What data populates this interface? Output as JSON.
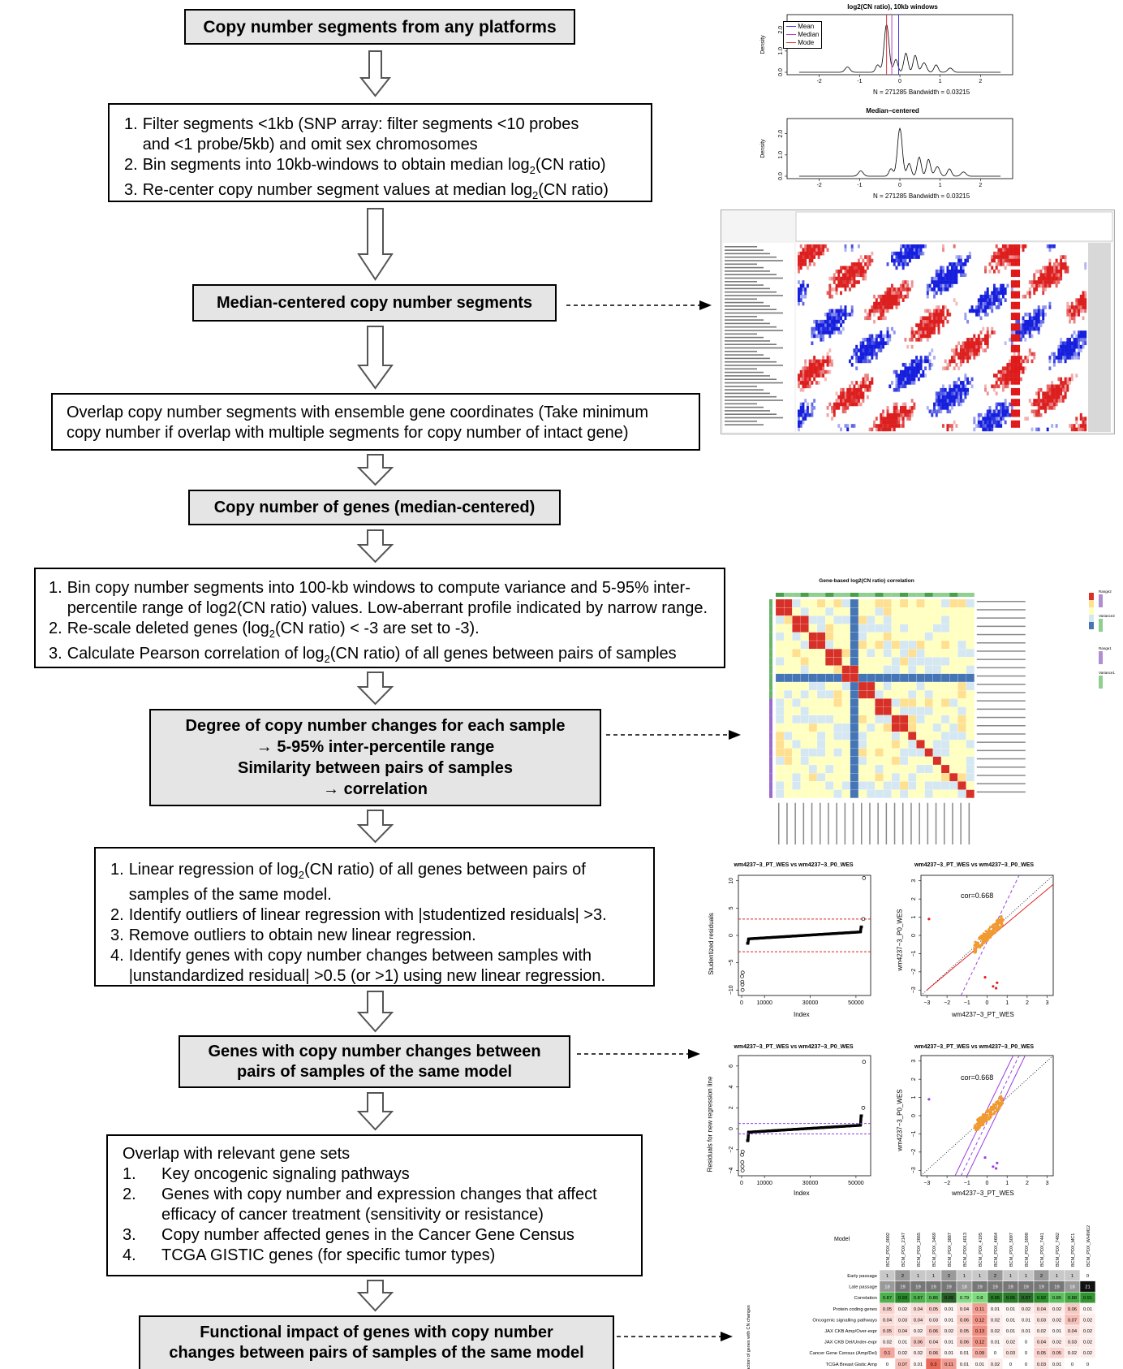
{
  "flow": {
    "box1": "Copy number segments from any platforms",
    "box2": {
      "items": [
        {
          "n": "1.",
          "parts": [
            "Filter segments <1kb (SNP array: filter segments <10 probes",
            "and <1 probe/5kb) and omit sex chromosomes"
          ]
        },
        {
          "n": "2.",
          "pre": "Bin segments into 10kb-windows to obtain median log",
          "sub": "2",
          "post": "(CN ratio)"
        },
        {
          "n": "3.",
          "pre": "Re-center copy number segment values at median log",
          "sub": "2",
          "post": "(CN ratio)"
        }
      ]
    },
    "box3": "Median-centered copy number segments",
    "box4": [
      "Overlap copy number segments with ensemble gene coordinates (Take minimum",
      "copy number if overlap with multiple segments for copy number of intact gene)"
    ],
    "box5": "Copy number of genes (median-centered)",
    "box6": {
      "items": [
        {
          "n": "1.",
          "parts": [
            "Bin copy number segments into 100-kb windows to compute variance and 5-95% inter-",
            "percentile range of log2(CN ratio) values. Low-aberrant profile indicated by narrow range."
          ]
        },
        {
          "n": "2.",
          "pre": "Re-scale deleted genes (log",
          "sub": "2",
          "post": "(CN ratio) < -3 are set to -3)."
        },
        {
          "n": "3.",
          "pre": "Calculate Pearson correlation of log",
          "sub": "2",
          "post": "(CN ratio) of all genes between pairs of samples"
        }
      ]
    },
    "box7": [
      "Degree of copy number changes for each sample",
      "→ 5-95% inter-percentile range",
      "Similarity between pairs of samples",
      "→ correlation"
    ],
    "box8": {
      "items": [
        {
          "n": "1.",
          "pre": "Linear regression of log",
          "sub": "2",
          "post": "(CN ratio) of all genes between pairs of",
          "line2": "samples of the same model."
        },
        {
          "n": "2.",
          "text": "Identify outliers of linear regression with |studentized residuals| >3."
        },
        {
          "n": "3.",
          "text": "Remove outliers to obtain new linear regression."
        },
        {
          "n": "4.",
          "text": "Identify genes with copy number changes between samples with",
          "line2": "|unstandardized residual| >0.5 (or >1) using new linear regression."
        }
      ]
    },
    "box9": [
      "Genes with copy number changes between",
      "pairs of samples of the same model"
    ],
    "box10": {
      "heading": "Overlap with relevant gene sets",
      "items": [
        {
          "n": "1.",
          "lines": [
            "Key oncogenic signaling pathways"
          ]
        },
        {
          "n": "2.",
          "lines": [
            "Genes with copy number and expression changes that affect",
            "efficacy of cancer treatment (sensitivity or resistance)"
          ]
        },
        {
          "n": "3.",
          "lines": [
            "Copy number affected genes in the Cancer Gene Census"
          ]
        },
        {
          "n": "4.",
          "lines": [
            "TCGA GISTIC genes (for specific tumor types)"
          ]
        }
      ]
    },
    "box11": [
      "Functional impact of genes with copy number",
      "changes between pairs of samples of the same model"
    ]
  },
  "figures": {
    "density1": {
      "title": "log2(CN ratio), 10kb windows",
      "ylabel": "Density",
      "footer": "N = 271285   Bandwidth = 0.03215",
      "yticks": [
        "0.0",
        "1.0",
        "2.0"
      ],
      "xticks": [
        "-2",
        "-1",
        "0",
        "1",
        "2"
      ],
      "legend": [
        "Mean",
        "Median",
        "Mode"
      ],
      "legend_colors": [
        "#3a3ad8",
        "#c03bc0",
        "#d83a3a"
      ]
    },
    "density2": {
      "title": "Median−centered",
      "ylabel": "Density",
      "footer": "N = 271285   Bandwidth = 0.03215",
      "yticks": [
        "0.0",
        "1.0",
        "2.0"
      ],
      "xticks": [
        "-2",
        "-1",
        "0",
        "1",
        "2"
      ]
    },
    "heatmap_title": "Gene-based log2(CN ratio) correlation",
    "corr_legend": [
      "Range2",
      "Variance2",
      "Range1",
      "Variance1"
    ],
    "resid1": {
      "title": "wm4237−3_PT_WES vs wm4237−3_P0_WES",
      "ylabel": "Studentized residuals",
      "xlabel": "Index",
      "yticks": [
        "−10",
        "−5",
        "0",
        "5",
        "10"
      ],
      "xticks": [
        "0",
        "10000",
        "30000",
        "50000"
      ]
    },
    "scatter1": {
      "title": "wm4237−3_PT_WES vs wm4237−3_P0_WES",
      "ylabel": "wm4237−3_P0_WES",
      "xlabel": "wm4237−3_PT_WES",
      "cor": "cor=0.668",
      "yticks": [
        "−3",
        "−2",
        "−1",
        "0",
        "1",
        "2",
        "3"
      ],
      "xticks": [
        "−3",
        "−2",
        "−1",
        "0",
        "1",
        "2",
        "3"
      ]
    },
    "resid2": {
      "title": "wm4237−3_PT_WES vs wm4237−3_P0_WES",
      "ylabel": "Residuals for new regression line",
      "xlabel": "Index",
      "yticks": [
        "−4",
        "−2",
        "0",
        "2",
        "4",
        "6"
      ],
      "xticks": [
        "0",
        "10000",
        "30000",
        "50000"
      ]
    },
    "scatter2": {
      "title": "wm4237−3_PT_WES vs wm4237−3_P0_WES",
      "ylabel": "wm4237−3_P0_WES",
      "xlabel": "wm4237−3_PT_WES",
      "cor": "cor=0.668",
      "yticks": [
        "−3",
        "−2",
        "−1",
        "0",
        "1",
        "2",
        "3"
      ],
      "xticks": [
        "−3",
        "−2",
        "−1",
        "0",
        "1",
        "2",
        "3"
      ]
    },
    "table": {
      "model_label": "Model",
      "side_label": "Fraction of genes with CN changes",
      "models": [
        "BCM_PDX_0002",
        "BCM_PDX_2147",
        "BCM_PDX_2665",
        "BCM_PDX_3469",
        "BCM_PDX_3887",
        "BCM_PDX_4013",
        "BCM_PDX_4195",
        "BCM_PDX_4664",
        "BCM_PDX_5097",
        "BCM_PDX_5998",
        "BCM_PDX_7441",
        "BCM_PDX_7482",
        "BCM_PDX_MC1",
        "BCM_PDX_WHIM12"
      ],
      "rows": [
        {
          "label": "Early passage",
          "values": [
            "1",
            "2",
            "1",
            "1",
            "2",
            "1",
            "1",
            "2",
            "1",
            "1",
            "2",
            "1",
            "1",
            "0"
          ]
        },
        {
          "label": "Late passage",
          "values": [
            "18",
            "19",
            "19",
            "19",
            "19",
            "18",
            "19",
            "19",
            "19",
            "19",
            "19",
            "19",
            "18",
            "21"
          ]
        },
        {
          "label": "Correlation",
          "values": [
            "0.87",
            "0.93",
            "0.87",
            "0.86",
            "0.99",
            "0.79",
            "0.8",
            "0.95",
            "0.95",
            "0.97",
            "0.92",
            "0.85",
            "0.88",
            "0.91"
          ]
        },
        {
          "label": "Protein coding genes",
          "values": [
            "0.05",
            "0.02",
            "0.04",
            "0.05",
            "0.01",
            "0.04",
            "0.11",
            "0.01",
            "0.01",
            "0.02",
            "0.04",
            "0.02",
            "0.06",
            "0.01"
          ]
        },
        {
          "label": "Oncogenic signalling pathways",
          "values": [
            "0.04",
            "0.03",
            "0.04",
            "0.03",
            "0.01",
            "0.06",
            "0.12",
            "0.02",
            "0.01",
            "0.01",
            "0.03",
            "0.02",
            "0.07",
            "0.02"
          ]
        },
        {
          "label": "JAX CKB Amp/Over-expr",
          "values": [
            "0.05",
            "0.04",
            "0.02",
            "0.06",
            "0.02",
            "0.05",
            "0.13",
            "0.02",
            "0.01",
            "0.01",
            "0.02",
            "0.01",
            "0.04",
            "0.02"
          ]
        },
        {
          "label": "JAX CKB Del/Under-expr",
          "values": [
            "0.02",
            "0.01",
            "0.06",
            "0.04",
            "0.01",
            "0.06",
            "0.12",
            "0.01",
            "0.02",
            "0",
            "0.04",
            "0.02",
            "0.03",
            "0.02"
          ]
        },
        {
          "label": "Cancer Gene Census (Amp/Del)",
          "values": [
            "0.1",
            "0.02",
            "0.02",
            "0.06",
            "0.01",
            "0.01",
            "0.09",
            "0",
            "0.03",
            "0",
            "0.05",
            "0.05",
            "0.02",
            "0.02"
          ]
        },
        {
          "label": "TCGA Breast Gistic Amp",
          "values": [
            "0",
            "0.07",
            "0.01",
            "0.3",
            "0.11",
            "0.01",
            "0.01",
            "0.02",
            "0",
            "0",
            "0.03",
            "0.01",
            "0",
            "0"
          ]
        }
      ]
    }
  }
}
